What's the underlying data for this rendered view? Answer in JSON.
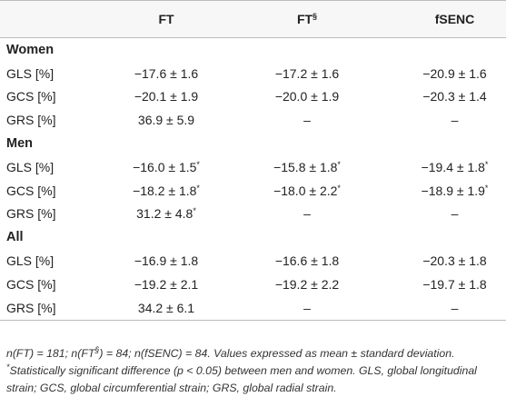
{
  "table": {
    "header": [
      {
        "text": ""
      },
      {
        "text": "FT"
      },
      {
        "text": "FT",
        "sup": "§"
      },
      {
        "text": "fSENC"
      }
    ],
    "sections": [
      {
        "title": "Women",
        "rows": [
          [
            {
              "text": "GLS [%]"
            },
            {
              "text": "−17.6 ± 1.6"
            },
            {
              "text": "−17.2 ± 1.6"
            },
            {
              "text": "−20.9 ± 1.6"
            }
          ],
          [
            {
              "text": "GCS [%]"
            },
            {
              "text": "−20.1 ± 1.9"
            },
            {
              "text": "−20.0 ± 1.9"
            },
            {
              "text": "−20.3 ± 1.4"
            }
          ],
          [
            {
              "text": "GRS [%]"
            },
            {
              "text": "36.9 ± 5.9"
            },
            {
              "text": "–"
            },
            {
              "text": "–"
            }
          ]
        ]
      },
      {
        "title": "Men",
        "rows": [
          [
            {
              "text": "GLS [%]"
            },
            {
              "text": "−16.0 ± 1.5",
              "sup": "*"
            },
            {
              "text": "−15.8 ± 1.8",
              "sup": "*"
            },
            {
              "text": "−19.4 ± 1.8",
              "sup": "*"
            }
          ],
          [
            {
              "text": "GCS [%]"
            },
            {
              "text": "−18.2 ± 1.8",
              "sup": "*"
            },
            {
              "text": "−18.0 ± 2.2",
              "sup": "*"
            },
            {
              "text": "−18.9 ± 1.9",
              "sup": "*"
            }
          ],
          [
            {
              "text": "GRS [%]"
            },
            {
              "text": "31.2 ± 4.8",
              "sup": "*"
            },
            {
              "text": "–"
            },
            {
              "text": "–"
            }
          ]
        ]
      },
      {
        "title": "All",
        "rows": [
          [
            {
              "text": "GLS [%]"
            },
            {
              "text": "−16.9 ± 1.8"
            },
            {
              "text": "−16.6 ± 1.8"
            },
            {
              "text": "−20.3 ± 1.8"
            }
          ],
          [
            {
              "text": "GCS [%]"
            },
            {
              "text": "−19.2 ± 2.1"
            },
            {
              "text": "−19.2 ± 2.2"
            },
            {
              "text": "−19.7 ± 1.8"
            }
          ],
          [
            {
              "text": "GRS [%]"
            },
            {
              "text": "34.2 ± 6.1"
            },
            {
              "text": "–"
            },
            {
              "text": "–"
            }
          ]
        ]
      }
    ]
  },
  "footnote": [
    {
      "text": "n(FT) = 181; n(FT"
    },
    {
      "text": "§",
      "sup": true
    },
    {
      "text": ") = 84; n(fSENC) = 84. Values expressed as mean ± standard deviation. "
    },
    {
      "text": "*",
      "sup": true
    },
    {
      "text": "Statistically significant difference (p < 0.05) between men and women. GLS, global longitudinal strain; GCS, global circumferential strain; GRS, global radial strain."
    }
  ]
}
